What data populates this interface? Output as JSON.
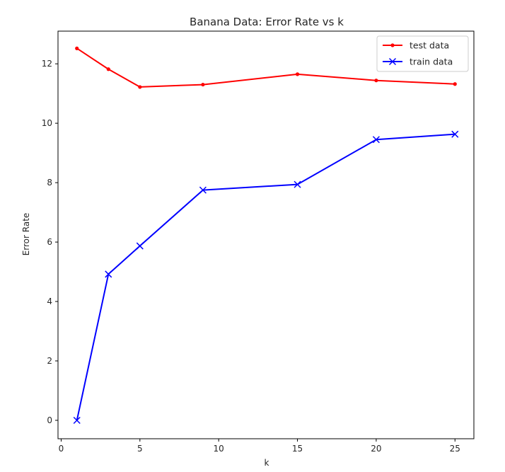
{
  "chart_data": {
    "type": "line",
    "title": "Banana Data: Error Rate vs k",
    "xlabel": "k",
    "ylabel": "Error Rate",
    "xlim": [
      -0.2,
      26.2
    ],
    "ylim": [
      -0.62,
      13.1
    ],
    "xticks": [
      0,
      5,
      10,
      15,
      20,
      25
    ],
    "yticks": [
      0,
      2,
      4,
      6,
      8,
      10,
      12
    ],
    "grid": false,
    "legend_position": "top-right",
    "series": [
      {
        "name": "test data",
        "color": "#ff0000",
        "marker": "dot",
        "x": [
          1,
          3,
          5,
          9,
          15,
          20,
          25
        ],
        "y": [
          12.52,
          11.82,
          11.22,
          11.3,
          11.65,
          11.44,
          11.32
        ]
      },
      {
        "name": "train data",
        "color": "#0000ff",
        "marker": "x",
        "x": [
          1,
          3,
          5,
          9,
          15,
          20,
          25
        ],
        "y": [
          0.0,
          4.92,
          5.87,
          7.75,
          7.94,
          9.45,
          9.63
        ]
      }
    ]
  }
}
